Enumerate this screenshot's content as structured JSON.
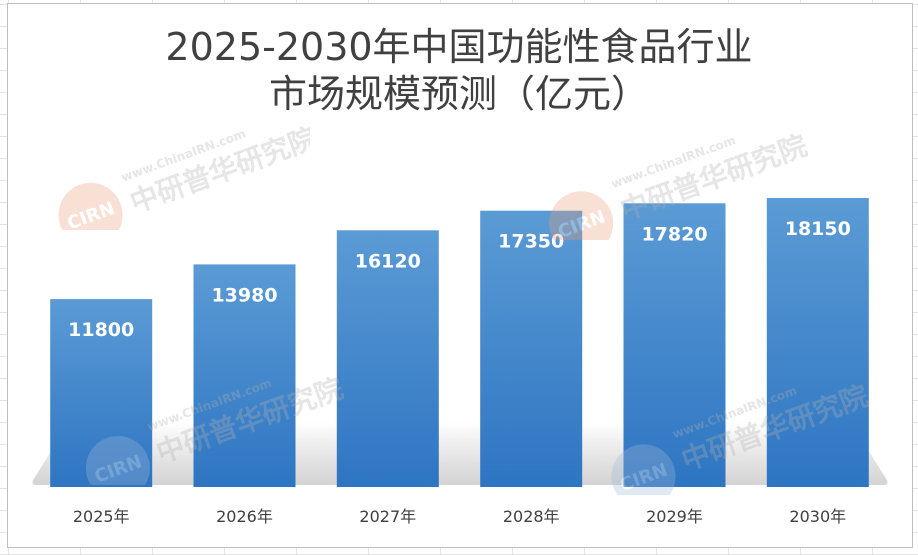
{
  "chart_data": {
    "type": "bar",
    "title_lines": [
      "2025-2030年中国功能性食品行业",
      "市场规模预测（亿元）"
    ],
    "categories": [
      "2025年",
      "2026年",
      "2027年",
      "2028年",
      "2029年",
      "2030年"
    ],
    "values": [
      11800,
      13980,
      16120,
      17350,
      17820,
      18150
    ],
    "ylim": [
      0,
      20000
    ],
    "grid": false,
    "legend": "none",
    "data_labels": "inside-top",
    "bar_color_top": "#5b9bd5",
    "bar_color_bottom": "#2e75c2"
  },
  "watermark": {
    "badge": "CIRN",
    "url": "www.ChinaIRN.com",
    "name": "中研普华研究院"
  }
}
